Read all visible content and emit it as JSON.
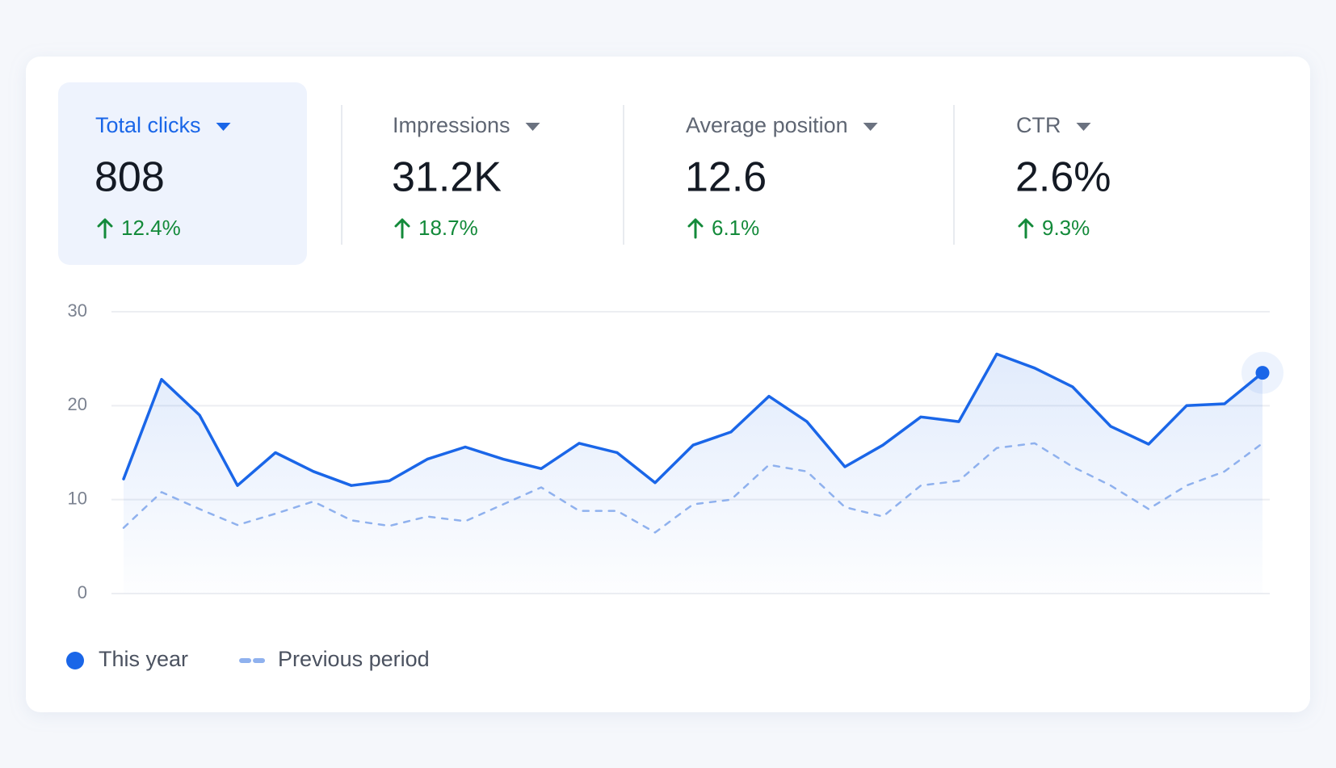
{
  "metrics": [
    {
      "label": "Total clicks",
      "value": "808",
      "change": "12.4%"
    },
    {
      "label": "Impressions",
      "value": "31.2K",
      "change": "18.7%"
    },
    {
      "label": "Average position",
      "value": "12.6",
      "change": "6.1%"
    },
    {
      "label": "CTR",
      "value": "2.6%",
      "change": "9.3%"
    }
  ],
  "chart_data": {
    "type": "line",
    "categories": [
      null,
      null,
      null,
      null,
      null,
      null,
      null,
      null,
      null,
      null,
      null,
      null,
      null,
      null,
      null,
      null,
      null,
      null,
      null,
      null,
      null,
      null,
      null,
      null,
      null,
      null,
      null,
      null,
      null,
      null,
      null
    ],
    "series": [
      {
        "name": "This year",
        "color": "#1a66e8",
        "style": "solid",
        "values": [
          12.2,
          22.8,
          19,
          11.5,
          15,
          13,
          11.5,
          12,
          14.3,
          15.6,
          14.3,
          13.3,
          16,
          15,
          11.8,
          15.8,
          17.2,
          21,
          18.3,
          13.5,
          15.8,
          18.8,
          18.3,
          25.5,
          24,
          22,
          17.8,
          15.9,
          20,
          20.2,
          23.5
        ]
      },
      {
        "name": "Previous period",
        "color": "#8fb1ee",
        "style": "dashed",
        "values": [
          7,
          10.8,
          9,
          7.3,
          8.5,
          9.8,
          7.8,
          7.2,
          8.2,
          7.7,
          9.5,
          11.3,
          8.8,
          8.8,
          6.5,
          9.5,
          10,
          13.7,
          13,
          9.2,
          8.2,
          11.5,
          12,
          15.5,
          16,
          13.5,
          11.5,
          9,
          11.5,
          13,
          16
        ]
      }
    ],
    "ylim": [
      0,
      30
    ],
    "yticks": [
      0,
      10,
      20,
      30
    ],
    "grid": true,
    "legend": "bottom-left"
  }
}
